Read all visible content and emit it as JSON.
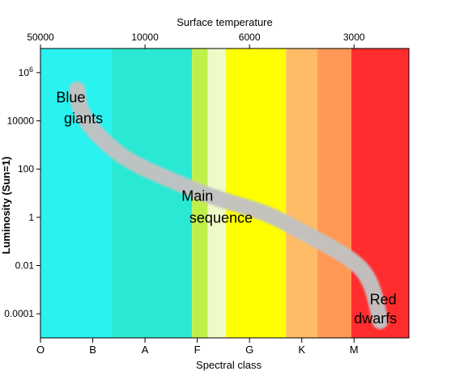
{
  "chart_data": {
    "type": "scatter",
    "title": "Surface temperature",
    "xlabel": "Spectral class",
    "ylabel": "Luminosity (Sun=1)",
    "x_categories": [
      "O",
      "B",
      "A",
      "F",
      "G",
      "K",
      "M"
    ],
    "top_axis": {
      "label": "Surface temperature",
      "ticks": [
        "50000",
        "10000",
        "6000",
        "3000"
      ]
    },
    "y_scale": "log",
    "y_ticks": [
      {
        "value": 1000000,
        "label": "10⁶"
      },
      {
        "value": 10000,
        "label": "10000"
      },
      {
        "value": 100,
        "label": "100"
      },
      {
        "value": 1,
        "label": "1"
      },
      {
        "value": 0.01,
        "label": "0.01"
      },
      {
        "value": 0.0001,
        "label": "0.0001"
      }
    ],
    "ylim": [
      1e-05,
      10000000
    ],
    "xlim": [
      0,
      7.05
    ],
    "color_bands": [
      {
        "from": 0,
        "to": 1.35,
        "color": "#29f2ef"
      },
      {
        "from": 1.35,
        "to": 2.9,
        "color": "#2ae9d4"
      },
      {
        "from": 2.9,
        "to": 3.2,
        "color": "#bff04a"
      },
      {
        "from": 3.2,
        "to": 3.55,
        "color": "#eefbc6"
      },
      {
        "from": 3.55,
        "to": 4.7,
        "color": "#ffff00"
      },
      {
        "from": 4.7,
        "to": 5.3,
        "color": "#ffbb66"
      },
      {
        "from": 5.3,
        "to": 5.95,
        "color": "#ff9855"
      },
      {
        "from": 5.95,
        "to": 7.05,
        "color": "#ff2d2d"
      }
    ],
    "main_sequence": {
      "color": "#c2c2c2",
      "points": [
        {
          "x": 0.7,
          "y": 200000
        },
        {
          "x": 0.75,
          "y": 30000
        },
        {
          "x": 1.0,
          "y": 4000
        },
        {
          "x": 1.5,
          "y": 400
        },
        {
          "x": 2.0,
          "y": 100
        },
        {
          "x": 2.5,
          "y": 35
        },
        {
          "x": 3.0,
          "y": 12
        },
        {
          "x": 3.5,
          "y": 5
        },
        {
          "x": 4.0,
          "y": 2.5
        },
        {
          "x": 4.5,
          "y": 1
        },
        {
          "x": 5.0,
          "y": 0.25
        },
        {
          "x": 5.5,
          "y": 0.07
        },
        {
          "x": 6.0,
          "y": 0.015
        },
        {
          "x": 6.25,
          "y": 0.004
        },
        {
          "x": 6.4,
          "y": 0.0006
        },
        {
          "x": 6.5,
          "y": 5e-05
        }
      ]
    },
    "annotations": [
      {
        "text": "Blue",
        "x": 0.3,
        "y": 60000
      },
      {
        "text": "giants",
        "x": 0.45,
        "y": 8000
      },
      {
        "text": "Main",
        "x": 2.7,
        "y": 4.8
      },
      {
        "text": "sequence",
        "x": 2.85,
        "y": 0.6
      },
      {
        "text": "Red",
        "x": 6.3,
        "y": 0.00025
      },
      {
        "text": "dwarfs",
        "x": 6.0,
        "y": 4e-05
      }
    ]
  }
}
